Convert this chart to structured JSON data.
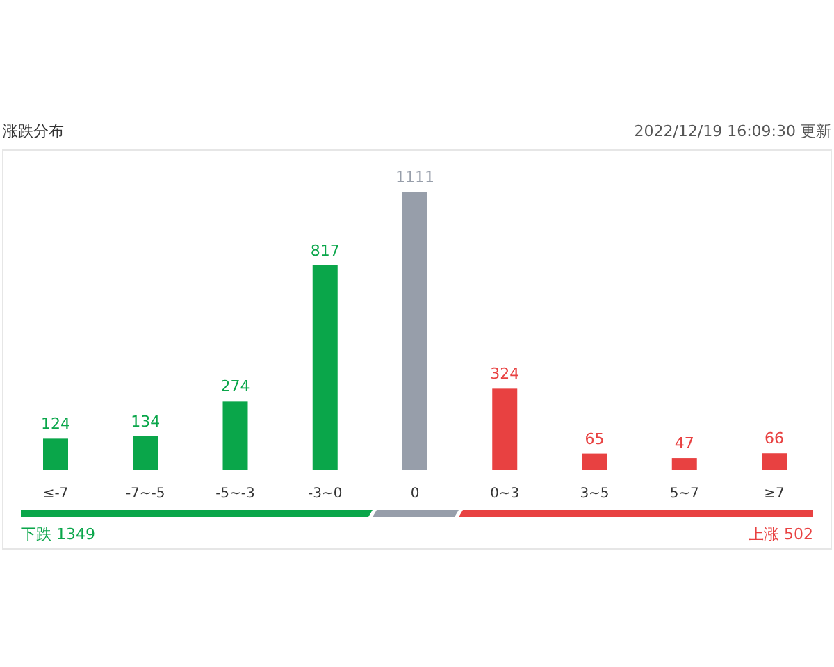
{
  "chart_data": {
    "type": "bar",
    "title": "涨跌分布",
    "categories": [
      "≤-7",
      "-7~-5",
      "-5~-3",
      "-3~0",
      "0",
      "0~3",
      "3~5",
      "5~7",
      "≥7"
    ],
    "values": [
      124,
      134,
      274,
      817,
      1111,
      324,
      65,
      47,
      66
    ],
    "colors": [
      "#0aa64a",
      "#0aa64a",
      "#0aa64a",
      "#0aa64a",
      "#979eaa",
      "#e84141",
      "#e84141",
      "#e84141",
      "#e84141"
    ],
    "data_labels": true,
    "annotations": [
      "2022/12/19 16:09:30  更新",
      "下跌 1349",
      "上涨 502"
    ]
  }
}
